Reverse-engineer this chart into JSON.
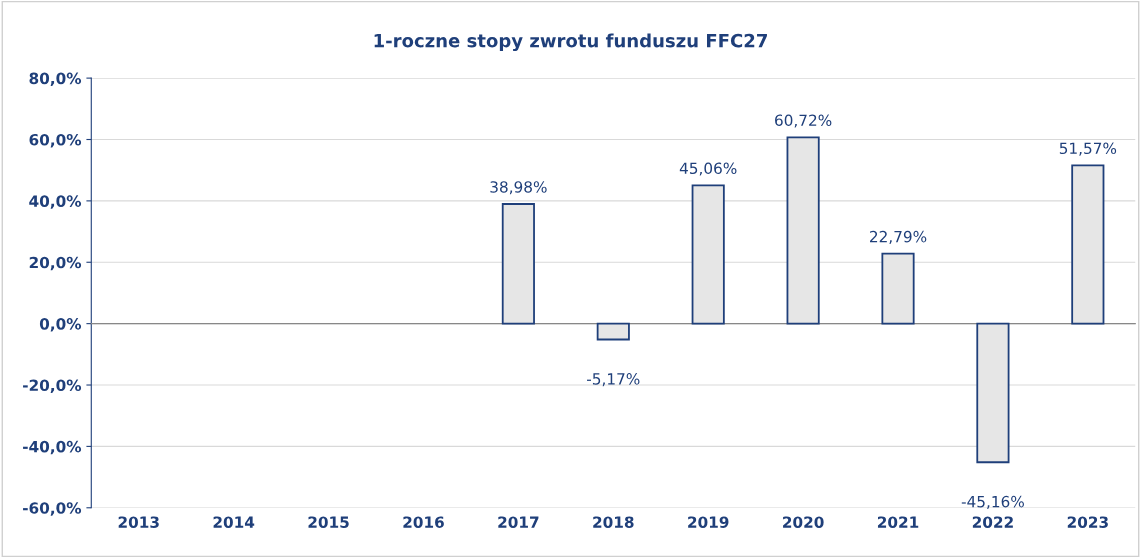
{
  "chart_data": {
    "type": "bar",
    "title": "1-roczne stopy zwrotu funduszu FFC27",
    "categories": [
      "2013",
      "2014",
      "2015",
      "2016",
      "2017",
      "2018",
      "2019",
      "2020",
      "2021",
      "2022",
      "2023"
    ],
    "values": [
      null,
      null,
      null,
      null,
      38.98,
      -5.17,
      45.06,
      60.72,
      22.79,
      -45.16,
      51.57
    ],
    "value_labels": [
      null,
      null,
      null,
      null,
      "38,98%",
      "-5,17%",
      "45,06%",
      "60,72%",
      "22,79%",
      "-45,16%",
      "51,57%"
    ],
    "color": "#e6e6e6",
    "ylim": [
      -60,
      80
    ],
    "yticks": [
      {
        "value": -60,
        "label": "-60,0%"
      },
      {
        "value": -40,
        "label": "-40,0%"
      },
      {
        "value": -20,
        "label": "-20,0%"
      },
      {
        "value": 0,
        "label": "0,0%"
      },
      {
        "value": 20,
        "label": "20,0%"
      },
      {
        "value": 40,
        "label": "40,0%"
      },
      {
        "value": 60,
        "label": "60,0%"
      },
      {
        "value": 80,
        "label": "80,0%"
      }
    ],
    "grid": "y",
    "legend": false
  }
}
